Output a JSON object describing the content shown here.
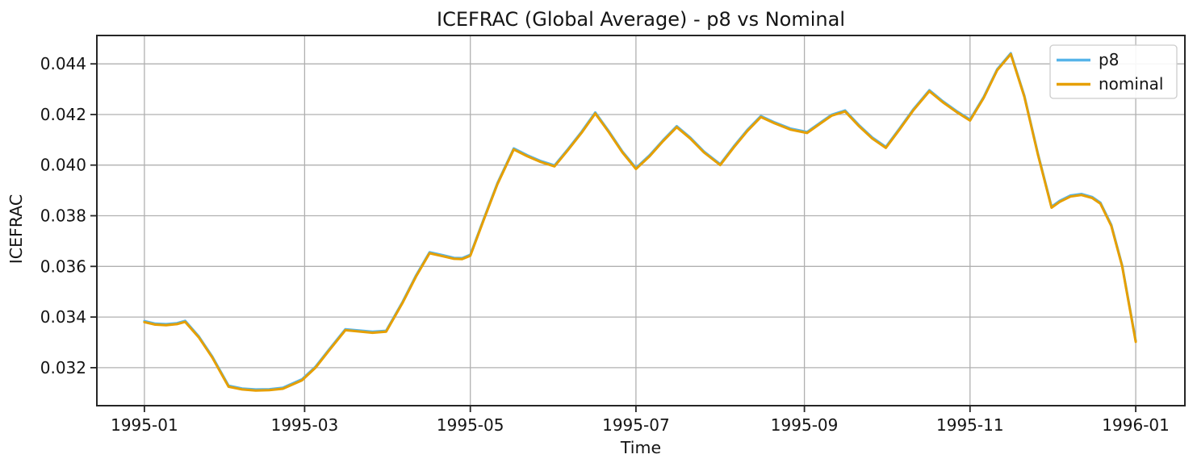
{
  "chart_data": {
    "type": "line",
    "title": "ICEFRAC (Global Average) - p8 vs Nominal",
    "xlabel": "Time",
    "ylabel": "ICEFRAC",
    "grid": true,
    "legend_position": "upper right",
    "xlim_days": [
      -17.5,
      383.1
    ],
    "ylim": [
      0.0305,
      0.04512
    ],
    "grid_color": "#b0b0b0",
    "spine_color": "#262626",
    "x_ticks": [
      {
        "day": 0,
        "label": "1995-01"
      },
      {
        "day": 59,
        "label": "1995-03"
      },
      {
        "day": 120,
        "label": "1995-05"
      },
      {
        "day": 181,
        "label": "1995-07"
      },
      {
        "day": 243,
        "label": "1995-09"
      },
      {
        "day": 304,
        "label": "1995-11"
      },
      {
        "day": 365,
        "label": "1996-01"
      }
    ],
    "y_ticks": [
      {
        "value": 0.032,
        "label": "0.032"
      },
      {
        "value": 0.034,
        "label": "0.034"
      },
      {
        "value": 0.036,
        "label": "0.036"
      },
      {
        "value": 0.038,
        "label": "0.038"
      },
      {
        "value": 0.04,
        "label": "0.040"
      },
      {
        "value": 0.042,
        "label": "0.042"
      },
      {
        "value": 0.044,
        "label": "0.044"
      }
    ],
    "x_days_since_1995_01_01": [
      0,
      4,
      8,
      12,
      15,
      20,
      25,
      31,
      36,
      41,
      46,
      51,
      58,
      63,
      68,
      74,
      79,
      84,
      89,
      95,
      100,
      105,
      110,
      114,
      117,
      120,
      125,
      130,
      136,
      141,
      146,
      151,
      156,
      161,
      166,
      171,
      176,
      181,
      186,
      191,
      196,
      201,
      206,
      212,
      217,
      222,
      227,
      232,
      238,
      244,
      249,
      253,
      258,
      263,
      268,
      273,
      278,
      283,
      289,
      294,
      299,
      304,
      309,
      314,
      319,
      324,
      329,
      334,
      337,
      341,
      345,
      349,
      352,
      356,
      360,
      365
    ],
    "series": [
      {
        "name": "p8",
        "color": "#56B4E9",
        "values": [
          0.03384,
          0.03374,
          0.03372,
          0.03376,
          0.03385,
          0.03324,
          0.03244,
          0.03129,
          0.03118,
          0.03114,
          0.03115,
          0.03121,
          0.03154,
          0.03204,
          0.03272,
          0.03352,
          0.03347,
          0.03342,
          0.03346,
          0.03459,
          0.03564,
          0.03656,
          0.03644,
          0.03634,
          0.03633,
          0.03646,
          0.03789,
          0.03929,
          0.04066,
          0.04039,
          0.04016,
          0.03999,
          0.04064,
          0.04132,
          0.04208,
          0.04134,
          0.04054,
          0.03989,
          0.04039,
          0.04099,
          0.04154,
          0.04109,
          0.04054,
          0.04004,
          0.04074,
          0.04139,
          0.04194,
          0.04169,
          0.04144,
          0.04131,
          0.04169,
          0.04199,
          0.04216,
          0.04159,
          0.04109,
          0.04072,
          0.04144,
          0.04219,
          0.04296,
          0.04252,
          0.04214,
          0.0418,
          0.04269,
          0.04379,
          0.04442,
          0.04274,
          0.04044,
          0.03836,
          0.03859,
          0.0388,
          0.03886,
          0.03874,
          0.03852,
          0.03764,
          0.03604,
          0.03306
        ]
      },
      {
        "name": "nominal",
        "color": "#E69F00",
        "values": [
          0.0338,
          0.0337,
          0.03368,
          0.03372,
          0.03381,
          0.0332,
          0.0324,
          0.03125,
          0.03114,
          0.0311,
          0.03111,
          0.03117,
          0.0315,
          0.032,
          0.03268,
          0.03348,
          0.03343,
          0.03338,
          0.03342,
          0.03455,
          0.0356,
          0.03652,
          0.0364,
          0.0363,
          0.03629,
          0.03642,
          0.03785,
          0.03925,
          0.04062,
          0.04035,
          0.04012,
          0.03995,
          0.0406,
          0.04128,
          0.04204,
          0.0413,
          0.0405,
          0.03985,
          0.04035,
          0.04095,
          0.0415,
          0.04105,
          0.0405,
          0.04,
          0.0407,
          0.04135,
          0.0419,
          0.04165,
          0.0414,
          0.04127,
          0.04165,
          0.04195,
          0.04212,
          0.04155,
          0.04105,
          0.04068,
          0.0414,
          0.04215,
          0.04292,
          0.04248,
          0.0421,
          0.04176,
          0.04265,
          0.04375,
          0.04438,
          0.0427,
          0.0404,
          0.03832,
          0.03855,
          0.03876,
          0.03882,
          0.0387,
          0.03848,
          0.0376,
          0.036,
          0.03302
        ]
      }
    ],
    "legend": {
      "entries": [
        {
          "label": "p8",
          "color": "#56B4E9"
        },
        {
          "label": "nominal",
          "color": "#E69F00"
        }
      ]
    }
  }
}
